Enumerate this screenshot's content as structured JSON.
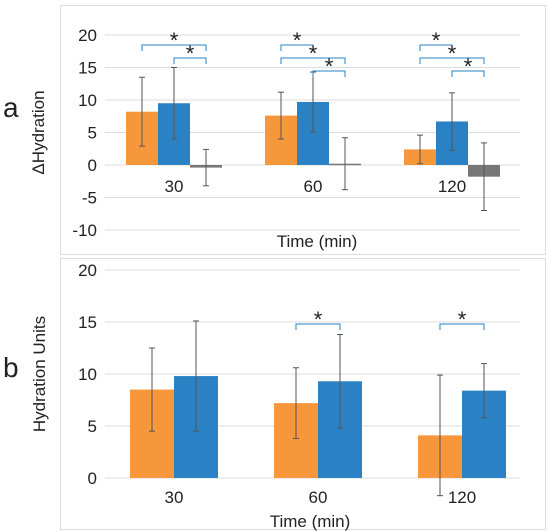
{
  "colors": {
    "orange": "#f7973b",
    "blue": "#2a81c3",
    "gray": "#777777",
    "sig": "#2a81c3",
    "grid": "#dcdcdc"
  },
  "panel_labels": {
    "a": "a",
    "b": "b"
  },
  "chart_data": [
    {
      "type": "bar",
      "panel": "a",
      "categories": [
        "30",
        "60",
        "120"
      ],
      "series": [
        {
          "color": "orange",
          "values": [
            8.2,
            7.6,
            2.4
          ],
          "errors": [
            5.3,
            3.6,
            2.2
          ]
        },
        {
          "color": "blue",
          "values": [
            9.5,
            9.7,
            6.7
          ],
          "errors": [
            5.5,
            4.6,
            4.4
          ]
        },
        {
          "color": "gray",
          "values": [
            -0.4,
            0.2,
            -1.8
          ],
          "errors": [
            2.8,
            4.0,
            5.2
          ]
        }
      ],
      "xlabel": "Time (min)",
      "ylabel": "ΔHydration",
      "ylim": [
        -10,
        20
      ],
      "yticks": [
        -10,
        -5,
        0,
        5,
        10,
        15,
        20
      ],
      "grid": true,
      "significance": [
        {
          "category": 0,
          "from": 0,
          "to": 2,
          "label": "*"
        },
        {
          "category": 0,
          "from": 1,
          "to": 2,
          "label": "*"
        },
        {
          "category": 1,
          "from": 0,
          "to": 1,
          "label": "*"
        },
        {
          "category": 1,
          "from": 0,
          "to": 2,
          "label": "*"
        },
        {
          "category": 1,
          "from": 1,
          "to": 2,
          "label": "*"
        },
        {
          "category": 2,
          "from": 0,
          "to": 1,
          "label": "*"
        },
        {
          "category": 2,
          "from": 0,
          "to": 2,
          "label": "*"
        },
        {
          "category": 2,
          "from": 1,
          "to": 2,
          "label": "*"
        }
      ]
    },
    {
      "type": "bar",
      "panel": "b",
      "categories": [
        "30",
        "60",
        "120"
      ],
      "series": [
        {
          "color": "orange",
          "values": [
            8.5,
            7.2,
            4.1
          ],
          "errors": [
            4.0,
            3.4,
            5.8
          ]
        },
        {
          "color": "blue",
          "values": [
            9.8,
            9.3,
            8.4
          ],
          "errors": [
            5.3,
            4.5,
            2.6
          ]
        }
      ],
      "xlabel": "Time (min)",
      "ylabel": "Hydration Units",
      "ylim": [
        0,
        20
      ],
      "yticks": [
        0,
        5,
        10,
        15,
        20
      ],
      "grid": true,
      "significance": [
        {
          "category": 1,
          "from": 0,
          "to": 1,
          "label": "*"
        },
        {
          "category": 2,
          "from": 0,
          "to": 1,
          "label": "*"
        }
      ]
    }
  ]
}
